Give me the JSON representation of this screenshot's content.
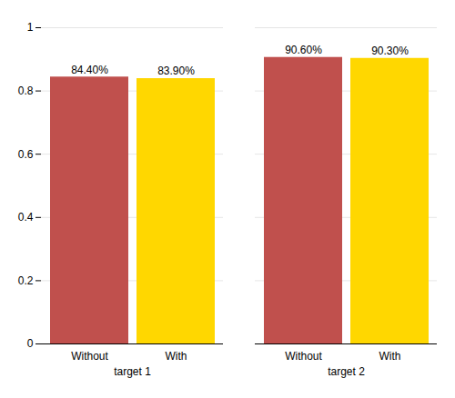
{
  "chart_data": {
    "type": "bar",
    "categories": [
      "target 1",
      "target 2"
    ],
    "series": [
      {
        "name": "Without",
        "color": "#c0504d",
        "values": [
          0.844,
          0.906
        ],
        "value_labels": [
          "84.40%",
          "90.60%"
        ]
      },
      {
        "name": "With",
        "color": "#FFD700",
        "values": [
          0.839,
          0.903
        ],
        "value_labels": [
          "83.90%",
          "90.30%"
        ]
      }
    ],
    "ylim": [
      0,
      1.0
    ],
    "yticks": [
      0,
      0.2,
      0.4,
      0.6,
      0.8,
      1
    ],
    "grid": true,
    "data_labels": true
  }
}
